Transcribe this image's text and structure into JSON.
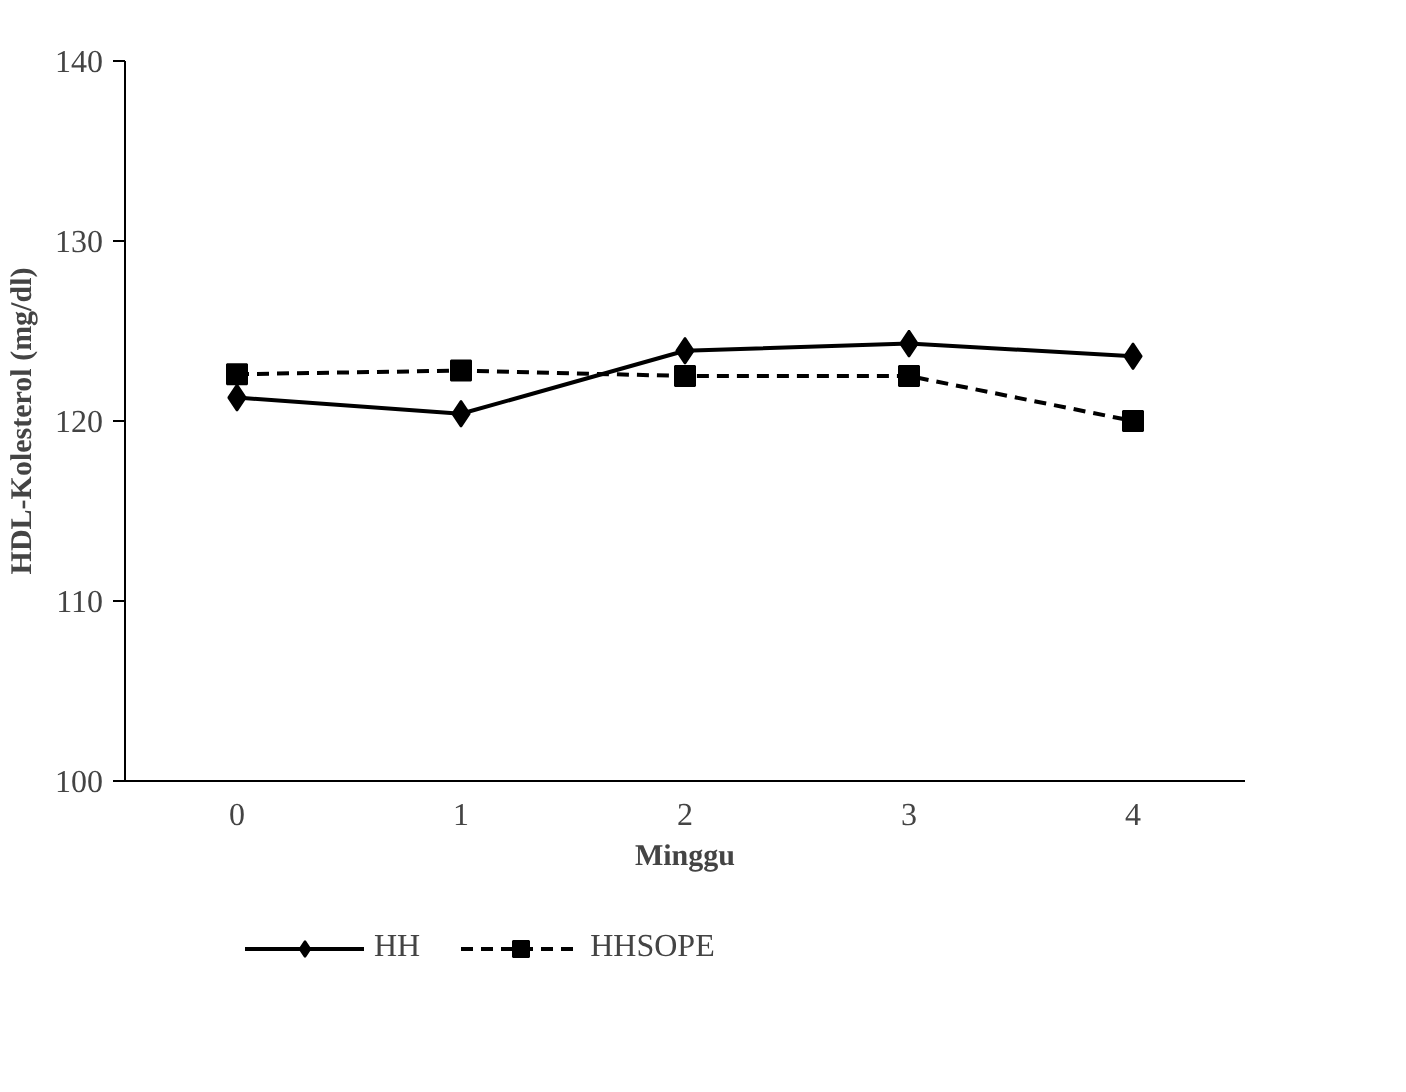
{
  "chart_data": {
    "type": "line",
    "xlabel": "Minggu",
    "ylabel": "HDL-Kolesterol (mg/dl)",
    "categories": [
      "0",
      "1",
      "2",
      "3",
      "4"
    ],
    "ylim": [
      100,
      140
    ],
    "yticks": [
      100,
      110,
      120,
      130,
      140
    ],
    "grid": false,
    "legend": "bottom",
    "series": [
      {
        "name": "HH",
        "color": "#000000",
        "marker": "diamond",
        "line_style": "solid",
        "values": [
          121.3,
          120.4,
          123.9,
          124.3,
          123.6
        ]
      },
      {
        "name": "HHSOPE",
        "color": "#000000",
        "marker": "square",
        "line_style": "dashed",
        "values": [
          122.6,
          122.8,
          122.5,
          122.5,
          120.0
        ]
      }
    ]
  }
}
